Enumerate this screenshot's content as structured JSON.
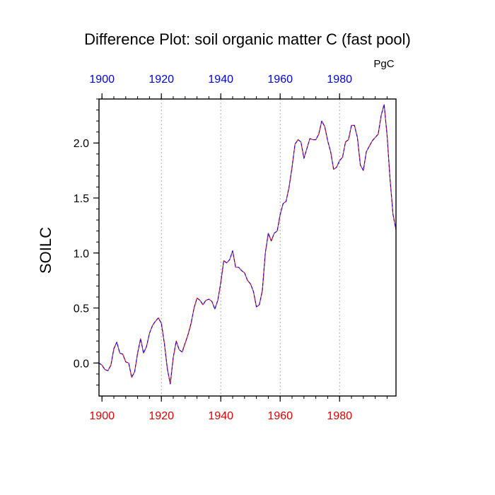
{
  "chart_data": {
    "type": "line",
    "title": "Difference Plot: soil organic matter C (fast pool)",
    "units": "PgC",
    "ylabel": "SOILC",
    "xlabel": "",
    "xlim": [
      1899,
      1999
    ],
    "ylim": [
      -0.3,
      2.4
    ],
    "x_ticks": [
      1900,
      1920,
      1940,
      1960,
      1980
    ],
    "x_tick_labels": [
      "1900",
      "1920",
      "1940",
      "1960",
      "1980"
    ],
    "y_ticks": [
      0.0,
      0.5,
      1.0,
      1.5,
      2.0
    ],
    "y_tick_labels": [
      "0.0",
      "0.5",
      "1.0",
      "1.5",
      "2.0"
    ],
    "y_minor_step": 0.1,
    "x_minor_step": 4,
    "vertical_gridlines": [
      1920,
      1940,
      1960,
      1980
    ],
    "colors": {
      "bottom_axis": "#e00000",
      "top_axis": "#0000e0",
      "series_a": "#ff0000",
      "series_b": "#0000ff",
      "grid": "#aaaaaa"
    },
    "series": [
      {
        "name": "series",
        "x": [
          1899,
          1900,
          1901,
          1902,
          1903,
          1904,
          1905,
          1906,
          1907,
          1908,
          1909,
          1910,
          1911,
          1912,
          1913,
          1914,
          1915,
          1916,
          1917,
          1918,
          1919,
          1920,
          1921,
          1922,
          1923,
          1924,
          1925,
          1926,
          1927,
          1928,
          1929,
          1930,
          1931,
          1932,
          1933,
          1934,
          1935,
          1936,
          1937,
          1938,
          1939,
          1940,
          1941,
          1942,
          1943,
          1944,
          1945,
          1946,
          1947,
          1948,
          1949,
          1950,
          1951,
          1952,
          1953,
          1954,
          1955,
          1956,
          1957,
          1958,
          1959,
          1960,
          1961,
          1962,
          1963,
          1964,
          1965,
          1966,
          1967,
          1968,
          1969,
          1970,
          1971,
          1972,
          1973,
          1974,
          1975,
          1976,
          1977,
          1978,
          1979,
          1980,
          1981,
          1982,
          1983,
          1984,
          1985,
          1986,
          1987,
          1988,
          1989,
          1990,
          1991,
          1992,
          1993,
          1994,
          1995,
          1996,
          1997,
          1998,
          1999
        ],
        "y": [
          0.0,
          -0.02,
          -0.06,
          -0.07,
          -0.02,
          0.13,
          0.19,
          0.09,
          0.08,
          0.01,
          0.0,
          -0.13,
          -0.08,
          0.09,
          0.22,
          0.09,
          0.15,
          0.27,
          0.34,
          0.38,
          0.41,
          0.36,
          0.18,
          -0.05,
          -0.19,
          0.05,
          0.2,
          0.12,
          0.1,
          0.18,
          0.26,
          0.36,
          0.5,
          0.59,
          0.57,
          0.53,
          0.57,
          0.58,
          0.56,
          0.49,
          0.57,
          0.73,
          0.93,
          0.91,
          0.94,
          1.02,
          0.87,
          0.87,
          0.84,
          0.82,
          0.75,
          0.72,
          0.65,
          0.51,
          0.53,
          0.66,
          1.0,
          1.18,
          1.11,
          1.18,
          1.2,
          1.35,
          1.45,
          1.47,
          1.6,
          1.78,
          1.99,
          2.03,
          2.01,
          1.86,
          1.95,
          2.04,
          2.03,
          2.03,
          2.08,
          2.2,
          2.15,
          2.02,
          1.92,
          1.76,
          1.78,
          1.84,
          1.87,
          2.01,
          2.03,
          2.16,
          2.16,
          2.05,
          1.8,
          1.75,
          1.92,
          1.97,
          2.02,
          2.05,
          2.08,
          2.25,
          2.35,
          2.07,
          1.67,
          1.35,
          1.21
        ]
      }
    ]
  }
}
